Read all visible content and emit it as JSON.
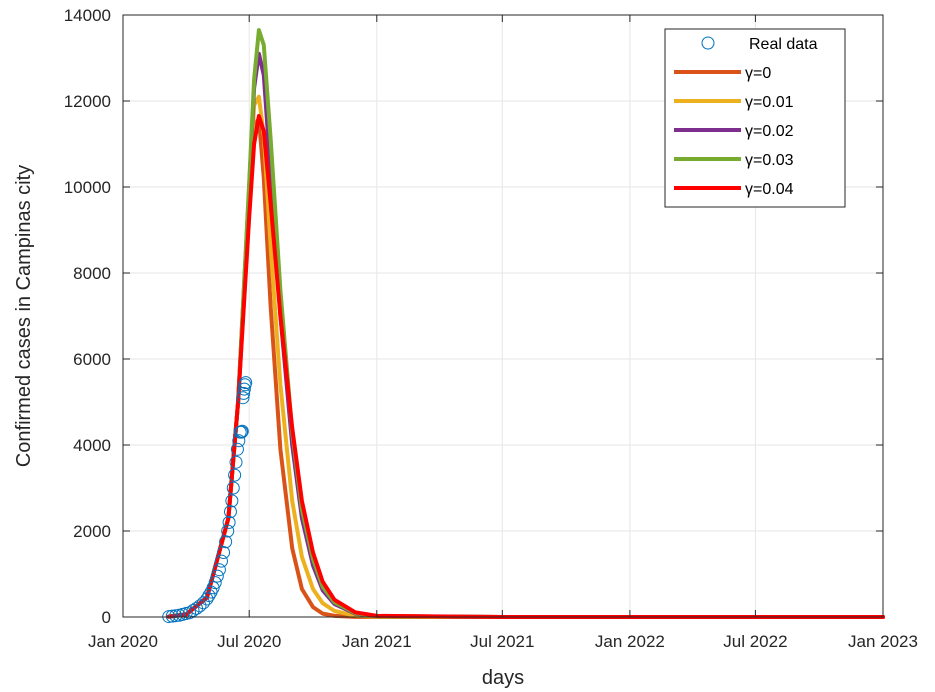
{
  "chart_data": {
    "type": "line",
    "xlabel": "days",
    "ylabel": "Confirmed cases in Campinas city",
    "xlim": [
      "2020-01-01",
      "2023-01-01"
    ],
    "ylim": [
      0,
      14000
    ],
    "x_ticks": [
      "2020-01-01",
      "2020-07-01",
      "2021-01-01",
      "2021-07-01",
      "2022-01-01",
      "2022-07-01",
      "2023-01-01"
    ],
    "x_tick_labels": [
      "Jan 2020",
      "Jul 2020",
      "Jan 2021",
      "Jul 2021",
      "Jan 2022",
      "Jul 2022",
      "Jan 2023"
    ],
    "y_ticks": [
      0,
      2000,
      4000,
      6000,
      8000,
      10000,
      12000,
      14000
    ],
    "y_tick_labels": [
      "0",
      "2000",
      "4000",
      "6000",
      "8000",
      "10000",
      "12000",
      "14000"
    ],
    "grid": true,
    "legend_position": "top-right",
    "series": [
      {
        "name": "Real data",
        "style": "markers",
        "color": "#0072BD",
        "x": [
          "2020-03-07",
          "2020-03-12",
          "2020-03-17",
          "2020-03-22",
          "2020-03-27",
          "2020-04-01",
          "2020-04-06",
          "2020-04-11",
          "2020-04-16",
          "2020-04-21",
          "2020-04-26",
          "2020-05-01",
          "2020-05-04",
          "2020-05-07",
          "2020-05-10",
          "2020-05-13",
          "2020-05-16",
          "2020-05-19",
          "2020-05-22",
          "2020-05-25",
          "2020-05-28",
          "2020-05-31",
          "2020-06-02",
          "2020-06-04",
          "2020-06-06",
          "2020-06-08",
          "2020-06-10",
          "2020-06-12",
          "2020-06-14",
          "2020-06-16",
          "2020-06-18",
          "2020-06-20",
          "2020-06-21",
          "2020-06-22",
          "2020-06-23",
          "2020-06-24",
          "2020-06-25",
          "2020-06-26"
        ],
        "y": [
          10,
          20,
          30,
          40,
          60,
          80,
          100,
          150,
          200,
          260,
          330,
          420,
          500,
          580,
          680,
          800,
          950,
          1100,
          1300,
          1500,
          1750,
          2000,
          2200,
          2450,
          2700,
          3000,
          3300,
          3600,
          3900,
          4100,
          4300,
          4300,
          4320,
          5100,
          5200,
          5300,
          5400,
          5450
        ]
      },
      {
        "name": "γ=0",
        "style": "line",
        "color": "#D95319",
        "x": [
          "2020-03-07",
          "2020-04-01",
          "2020-05-01",
          "2020-06-01",
          "2020-06-15",
          "2020-07-01",
          "2020-07-08",
          "2020-07-15",
          "2020-07-22",
          "2020-08-01",
          "2020-08-15",
          "2020-09-01",
          "2020-09-15",
          "2020-10-01",
          "2020-10-15",
          "2020-11-01",
          "2020-12-01",
          "2021-01-01",
          "2021-07-01",
          "2022-01-01",
          "2023-01-01"
        ],
        "y": [
          10,
          60,
          450,
          2300,
          5000,
          9500,
          11400,
          11600,
          10200,
          7200,
          3900,
          1600,
          650,
          230,
          80,
          25,
          3,
          0,
          0,
          0,
          0
        ]
      },
      {
        "name": "γ=0.01",
        "style": "line",
        "color": "#EDB120",
        "x": [
          "2020-03-07",
          "2020-04-01",
          "2020-05-01",
          "2020-06-01",
          "2020-06-15",
          "2020-07-01",
          "2020-07-08",
          "2020-07-15",
          "2020-07-22",
          "2020-08-01",
          "2020-08-15",
          "2020-09-01",
          "2020-09-15",
          "2020-10-01",
          "2020-10-15",
          "2020-11-01",
          "2020-12-01",
          "2021-01-01",
          "2021-07-01",
          "2022-01-01",
          "2023-01-01"
        ],
        "y": [
          10,
          60,
          450,
          2300,
          5000,
          9700,
          11900,
          12100,
          11200,
          8600,
          5400,
          2700,
          1400,
          650,
          320,
          140,
          30,
          5,
          0,
          0,
          0
        ]
      },
      {
        "name": "γ=0.02",
        "style": "line",
        "color": "#7E2F8E",
        "x": [
          "2020-03-07",
          "2020-04-01",
          "2020-05-01",
          "2020-06-01",
          "2020-06-15",
          "2020-07-01",
          "2020-07-08",
          "2020-07-15",
          "2020-07-22",
          "2020-08-01",
          "2020-08-15",
          "2020-09-01",
          "2020-09-15",
          "2020-10-01",
          "2020-10-15",
          "2020-11-01",
          "2020-12-01",
          "2021-01-01",
          "2021-07-01",
          "2022-01-01",
          "2023-01-01"
        ],
        "y": [
          10,
          60,
          450,
          2300,
          5000,
          10000,
          12300,
          13100,
          12600,
          10300,
          7000,
          4000,
          2300,
          1200,
          620,
          300,
          80,
          20,
          0,
          0,
          0
        ]
      },
      {
        "name": "γ=0.03",
        "style": "line",
        "color": "#77AC30",
        "x": [
          "2020-03-07",
          "2020-04-01",
          "2020-05-01",
          "2020-06-01",
          "2020-06-15",
          "2020-07-01",
          "2020-07-08",
          "2020-07-15",
          "2020-07-22",
          "2020-08-01",
          "2020-08-15",
          "2020-09-01",
          "2020-09-15",
          "2020-10-01",
          "2020-10-15",
          "2020-11-01",
          "2020-12-01",
          "2021-01-01",
          "2021-07-01",
          "2022-01-01",
          "2023-01-01"
        ],
        "y": [
          10,
          60,
          450,
          2300,
          5000,
          10100,
          12500,
          13650,
          13300,
          11100,
          7600,
          4300,
          2500,
          1350,
          700,
          340,
          90,
          20,
          0,
          0,
          0
        ]
      },
      {
        "name": "γ=0.04",
        "style": "line",
        "color": "#FF0000",
        "x": [
          "2020-03-07",
          "2020-04-01",
          "2020-05-01",
          "2020-06-01",
          "2020-06-15",
          "2020-07-01",
          "2020-07-08",
          "2020-07-15",
          "2020-07-22",
          "2020-08-01",
          "2020-08-15",
          "2020-09-01",
          "2020-09-15",
          "2020-10-01",
          "2020-10-15",
          "2020-11-01",
          "2020-12-01",
          "2021-01-01",
          "2021-07-01",
          "2022-01-01",
          "2023-01-01"
        ],
        "y": [
          10,
          60,
          450,
          2300,
          5000,
          9300,
          11000,
          11650,
          11300,
          9600,
          7000,
          4400,
          2700,
          1500,
          820,
          400,
          110,
          25,
          0,
          0,
          0
        ]
      }
    ]
  }
}
